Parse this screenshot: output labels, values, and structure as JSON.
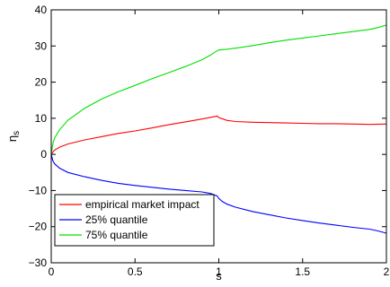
{
  "chart_data": {
    "type": "line",
    "xlabel": "s",
    "ylabel": "η",
    "ylabel_sub": "s",
    "xlim": [
      0,
      2
    ],
    "ylim": [
      -30,
      40
    ],
    "xticks": [
      0,
      0.5,
      1,
      1.5,
      2
    ],
    "xtick_labels": [
      "0",
      "0.5",
      "1",
      "1.5",
      "2"
    ],
    "yticks": [
      -30,
      -20,
      -10,
      0,
      10,
      20,
      30,
      40
    ],
    "ytick_labels": [
      "−30",
      "−20",
      "−10",
      "0",
      "10",
      "20",
      "30",
      "40"
    ],
    "grid": false,
    "legend_position": "bottom-left",
    "series": [
      {
        "name": "empirical market impact",
        "color": "#ff0000",
        "x": [
          0,
          0.02,
          0.05,
          0.1,
          0.2,
          0.3,
          0.4,
          0.5,
          0.6,
          0.7,
          0.8,
          0.9,
          0.97,
          0.99,
          1.0,
          1.05,
          1.1,
          1.2,
          1.3,
          1.4,
          1.5,
          1.6,
          1.7,
          1.8,
          1.9,
          2.0
        ],
        "y": [
          0,
          1.2,
          2.0,
          2.9,
          4.0,
          4.9,
          5.8,
          6.5,
          7.3,
          8.2,
          9.0,
          9.8,
          10.4,
          10.6,
          10.2,
          9.4,
          9.1,
          8.9,
          8.8,
          8.7,
          8.6,
          8.5,
          8.5,
          8.4,
          8.3,
          8.4
        ]
      },
      {
        "name": "25% quantile",
        "color": "#0000ff",
        "x": [
          0,
          0.01,
          0.02,
          0.05,
          0.1,
          0.2,
          0.3,
          0.4,
          0.5,
          0.6,
          0.7,
          0.8,
          0.9,
          0.95,
          0.99,
          1.0,
          1.02,
          1.05,
          1.1,
          1.2,
          1.3,
          1.4,
          1.5,
          1.6,
          1.7,
          1.8,
          1.9,
          1.95,
          2.0
        ],
        "y": [
          0,
          -1.8,
          -2.6,
          -3.8,
          -5.0,
          -6.2,
          -7.2,
          -8.0,
          -8.6,
          -9.1,
          -9.6,
          -10.0,
          -10.4,
          -10.8,
          -11.5,
          -12.2,
          -13.0,
          -13.8,
          -14.6,
          -15.8,
          -16.7,
          -17.6,
          -18.3,
          -19.0,
          -19.6,
          -20.2,
          -20.7,
          -21.2,
          -21.8
        ]
      },
      {
        "name": "75% quantile",
        "color": "#00e000",
        "x": [
          0,
          0.01,
          0.02,
          0.05,
          0.1,
          0.2,
          0.3,
          0.4,
          0.5,
          0.6,
          0.7,
          0.8,
          0.9,
          0.95,
          0.98,
          1.0,
          1.05,
          1.1,
          1.2,
          1.3,
          1.4,
          1.5,
          1.6,
          1.7,
          1.8,
          1.9,
          1.95,
          2.0
        ],
        "y": [
          0,
          3.0,
          4.5,
          6.8,
          9.5,
          12.8,
          15.3,
          17.3,
          19.1,
          20.9,
          22.6,
          24.3,
          26.2,
          27.5,
          28.4,
          28.9,
          29.1,
          29.4,
          30.1,
          30.9,
          31.6,
          32.2,
          32.8,
          33.4,
          34.0,
          34.6,
          35.1,
          35.8
        ]
      }
    ]
  }
}
